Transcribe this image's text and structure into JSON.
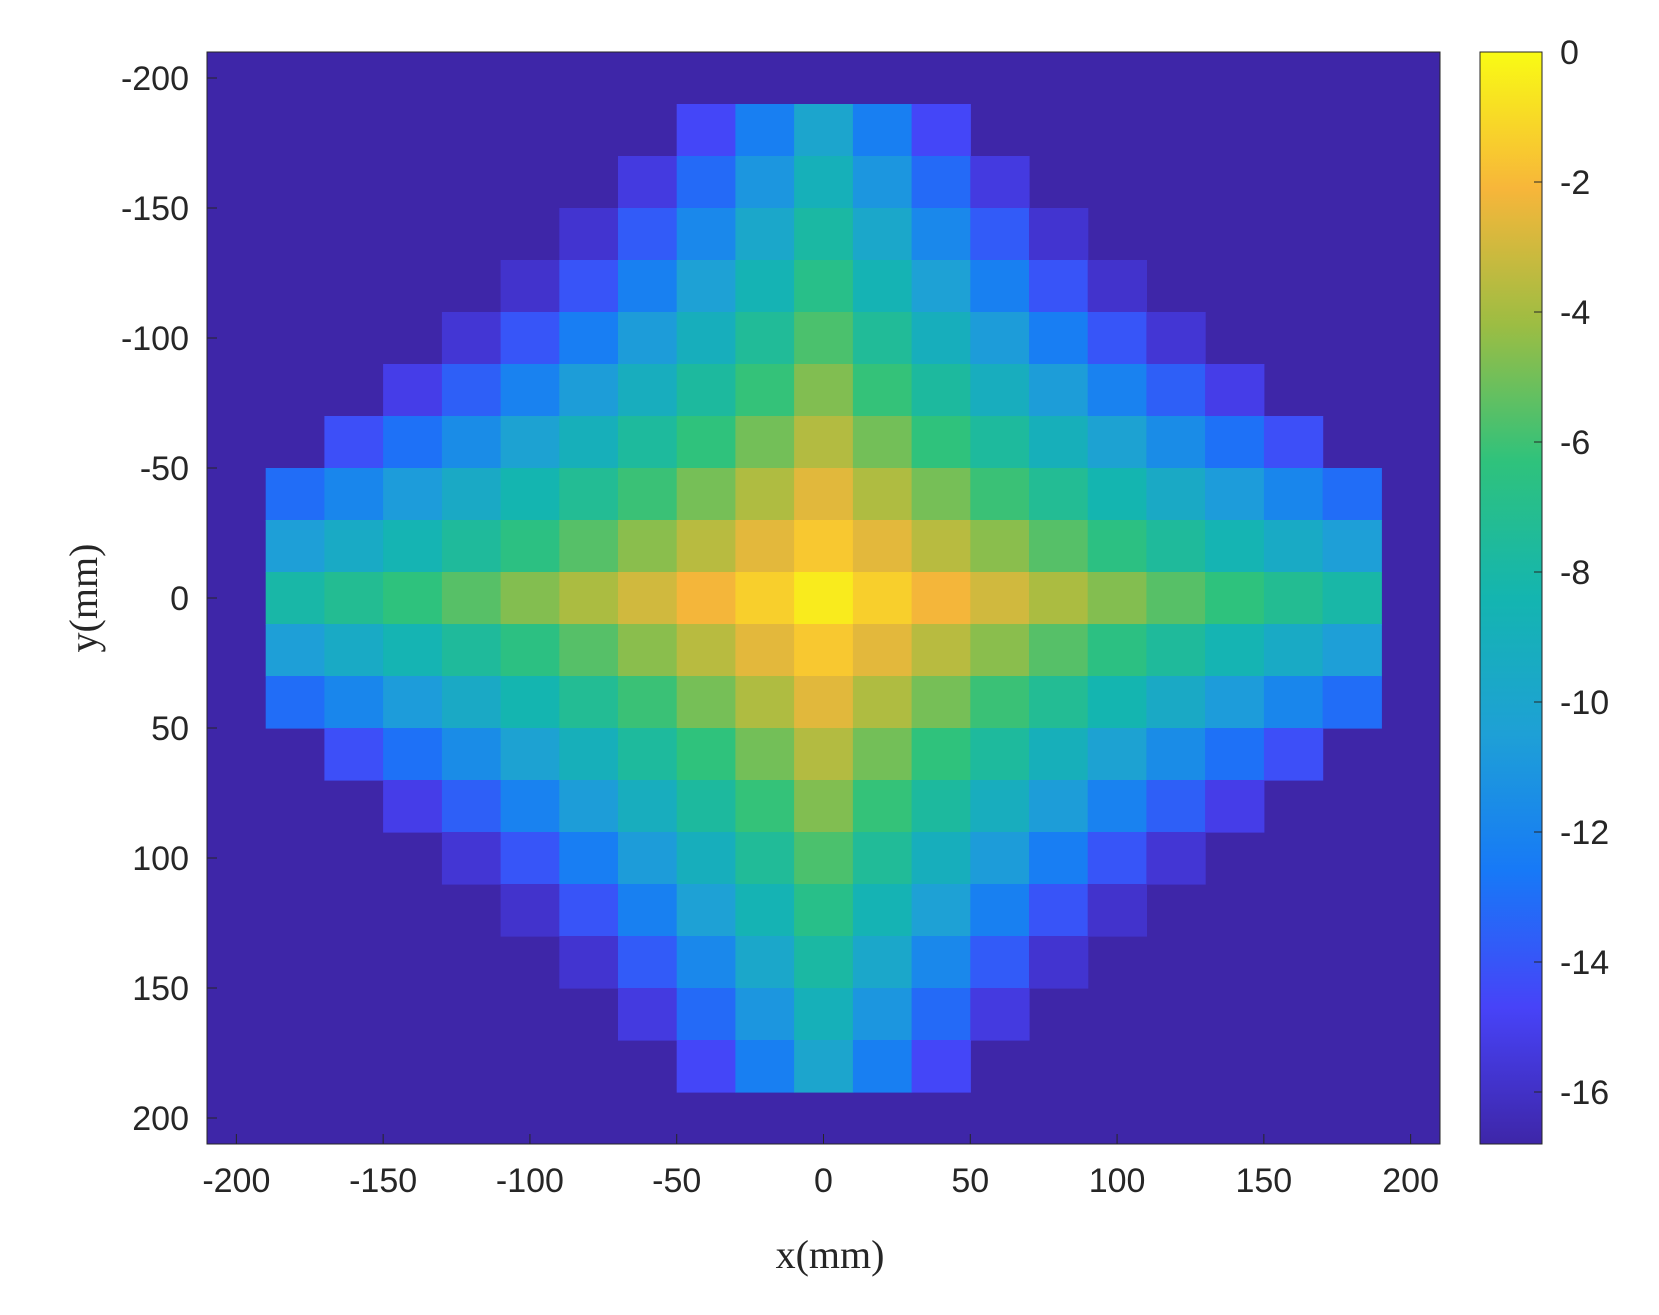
{
  "chart_data": {
    "type": "heatmap",
    "title": "",
    "xlabel": "x(mm)",
    "ylabel": "y(mm)",
    "xlim": [
      -210,
      210
    ],
    "ylim": [
      210,
      -210
    ],
    "y_axis_reversed": true,
    "x_ticks": [
      -200,
      -150,
      -100,
      -50,
      0,
      50,
      100,
      150,
      200
    ],
    "y_ticks": [
      -200,
      -150,
      -100,
      -50,
      0,
      50,
      100,
      150,
      200
    ],
    "colorbar": {
      "colormap": "parula",
      "range": [
        -16.8,
        0
      ],
      "ticks": [
        0,
        -2,
        -4,
        -6,
        -8,
        -10,
        -12,
        -14,
        -16
      ],
      "tick_labels": [
        "0",
        "-2",
        "-4",
        "-6",
        "-8",
        "-10",
        "-12",
        "-14",
        "-16"
      ]
    },
    "grid": false,
    "cell_size_mm": 20,
    "x": [
      -200,
      -180,
      -160,
      -140,
      -120,
      -100,
      -80,
      -60,
      -40,
      -20,
      0,
      20,
      40,
      60,
      80,
      100,
      120,
      140,
      160,
      180,
      200
    ],
    "y": [
      -200,
      -180,
      -160,
      -140,
      -120,
      -100,
      -80,
      -60,
      -40,
      -20,
      0,
      20,
      40,
      60,
      80,
      100,
      120,
      140,
      160,
      180,
      200
    ],
    "background_value": -16.5,
    "cell_model": {
      "description": "cell value = peak - f(|x|,|y|) following the diamond shaped spread visible in the image",
      "peak": -0.5
    }
  }
}
